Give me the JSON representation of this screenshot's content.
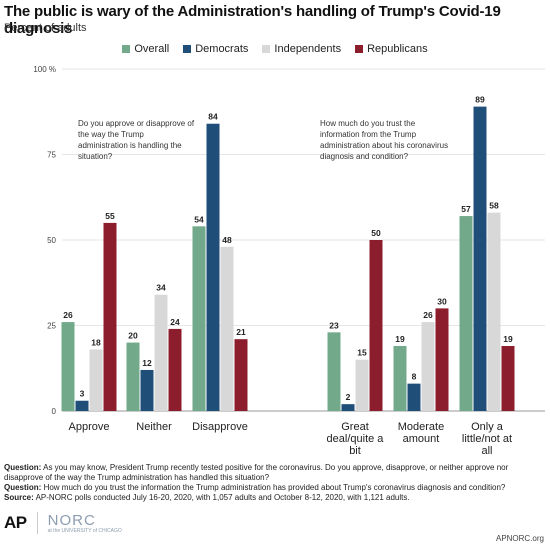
{
  "header": {
    "title": "The public is wary of the Administration's handling of Trump's Covid-19 diagnosis",
    "subtitle": "Percent of adults"
  },
  "colors": {
    "Overall": "#72a98a",
    "Democrats": "#1f4e79",
    "Independents": "#d8d8d8",
    "Republicans": "#8c1d2c"
  },
  "chart_data": {
    "type": "bar",
    "series_names": [
      "Overall",
      "Democrats",
      "Independents",
      "Republicans"
    ],
    "ylim": [
      0,
      100
    ],
    "yticks": [
      {
        "value": 0,
        "label": "0"
      },
      {
        "value": 25,
        "label": "25"
      },
      {
        "value": 50,
        "label": "50"
      },
      {
        "value": 75,
        "label": "75"
      },
      {
        "value": 100,
        "label": "100 %"
      }
    ],
    "groups": [
      {
        "question": "Do you approve or disapprove of the way the Trump administration is handling the situation?",
        "question_lines": [
          "Do you approve or disapprove of",
          "the way the Trump",
          "administration is handling the",
          "situation?"
        ],
        "categories": [
          {
            "label_lines": [
              "Approve"
            ],
            "values": [
              26,
              3,
              18,
              55
            ]
          },
          {
            "label_lines": [
              "Neither"
            ],
            "values": [
              20,
              12,
              34,
              24
            ]
          },
          {
            "label_lines": [
              "Disapprove"
            ],
            "values": [
              54,
              84,
              48,
              21
            ]
          }
        ]
      },
      {
        "question": "How much do you trust the information from the Trump administration about his coronavirus diagnosis and condition?",
        "question_lines": [
          "How much do you trust the",
          "information from the Trump",
          "administration about his coronavirus",
          "diagnosis and condition?"
        ],
        "categories": [
          {
            "label_lines": [
              "Great",
              "deal/quite a",
              "bit"
            ],
            "values": [
              23,
              2,
              15,
              50
            ]
          },
          {
            "label_lines": [
              "Moderate",
              "amount"
            ],
            "values": [
              19,
              8,
              26,
              30
            ]
          },
          {
            "label_lines": [
              "Only a",
              "little/not at",
              "all"
            ],
            "values": [
              57,
              89,
              58,
              19
            ]
          }
        ]
      }
    ]
  },
  "notes": {
    "q1_label": "Question:",
    "q1_text": " As you may know, President Trump recently tested positive for the coronavirus. Do you approve, disapprove, or neither approve nor disapprove of the way the Trump administration has handled this situation?",
    "q2_label": "Question:",
    "q2_text": " How much do you trust the information the Trump administration has provided about Trump's coronavirus diagnosis and condition?",
    "source_label": "Source:",
    "source_text": " AP-NORC polls conducted July 16-20, 2020, with 1,057 adults and October 8-12, 2020, with 1,121 adults."
  },
  "footer": {
    "ap_logo": "AP",
    "norc_logo": "NORC",
    "norc_sub": "at the UNIVERSITY of CHICAGO",
    "url": "APNORC.org"
  }
}
